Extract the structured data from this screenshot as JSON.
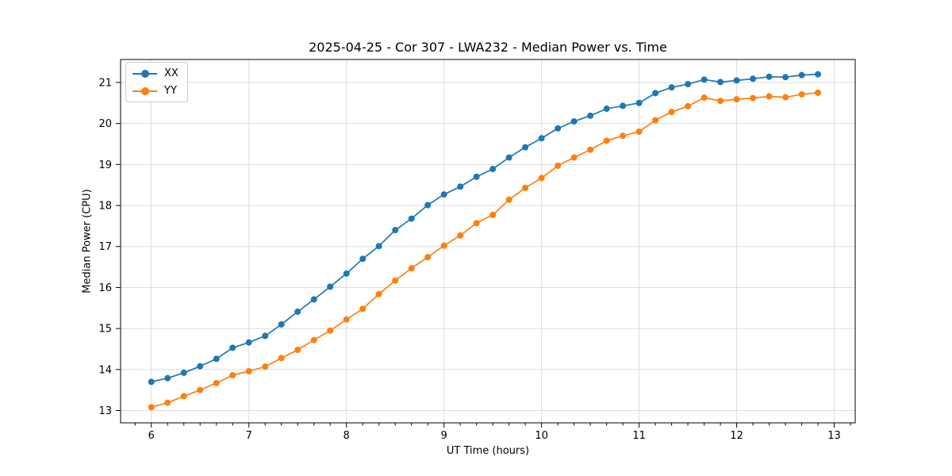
{
  "figure": {
    "title": "2025-04-25 - Cor 307 - LWA232 - Median Power vs. Time",
    "xlabel": "UT Time (hours)",
    "ylabel": "Median Power (CPU)"
  },
  "chart_data": {
    "type": "line",
    "title": "2025-04-25 - Cor 307 - LWA232 - Median Power vs. Time",
    "xlabel": "UT Time (hours)",
    "ylabel": "Median Power (CPU)",
    "xlim": [
      5.685,
      13.215
    ],
    "ylim": [
      12.7,
      21.56
    ],
    "x_ticks": [
      6,
      7,
      8,
      9,
      10,
      11,
      12,
      13
    ],
    "y_ticks": [
      13,
      14,
      15,
      16,
      17,
      18,
      19,
      20,
      21
    ],
    "x_minor_tick_step": 0.1667,
    "grid": true,
    "legend_position": "upper left",
    "colors": {
      "grid": "#dcdcdc",
      "frame": "#000000",
      "text": "#000000"
    },
    "x": [
      6.0,
      6.167,
      6.333,
      6.5,
      6.667,
      6.833,
      7.0,
      7.167,
      7.333,
      7.5,
      7.667,
      7.833,
      8.0,
      8.167,
      8.333,
      8.5,
      8.667,
      8.833,
      9.0,
      9.167,
      9.333,
      9.5,
      9.667,
      9.833,
      10.0,
      10.167,
      10.333,
      10.5,
      10.667,
      10.833,
      11.0,
      11.167,
      11.333,
      11.5,
      11.667,
      11.833,
      12.0,
      12.167,
      12.333,
      12.5,
      12.667,
      12.833
    ],
    "series": [
      {
        "name": "XX",
        "color": "#1f77b4",
        "marker": "circle",
        "values": [
          13.7,
          13.79,
          13.92,
          14.08,
          14.26,
          14.53,
          14.66,
          14.82,
          15.1,
          15.41,
          15.71,
          16.02,
          16.34,
          16.7,
          17.01,
          17.4,
          17.68,
          18.01,
          18.27,
          18.46,
          18.7,
          18.89,
          19.17,
          19.42,
          19.64,
          19.88,
          20.05,
          20.19,
          20.36,
          20.43,
          20.5,
          20.74,
          20.88,
          20.96,
          21.07,
          21.01,
          21.05,
          21.09,
          21.14,
          21.13,
          21.18,
          21.2
        ]
      },
      {
        "name": "YY",
        "color": "#ff7f0e",
        "marker": "circle",
        "values": [
          13.08,
          13.19,
          13.35,
          13.5,
          13.67,
          13.86,
          13.96,
          14.07,
          14.28,
          14.48,
          14.72,
          14.95,
          15.22,
          15.48,
          15.84,
          16.17,
          16.47,
          16.74,
          17.02,
          17.27,
          17.57,
          17.77,
          18.14,
          18.43,
          18.67,
          18.97,
          19.17,
          19.36,
          19.58,
          19.7,
          19.8,
          20.08,
          20.28,
          20.42,
          20.63,
          20.55,
          20.59,
          20.62,
          20.66,
          20.64,
          20.71,
          20.75
        ]
      }
    ]
  }
}
